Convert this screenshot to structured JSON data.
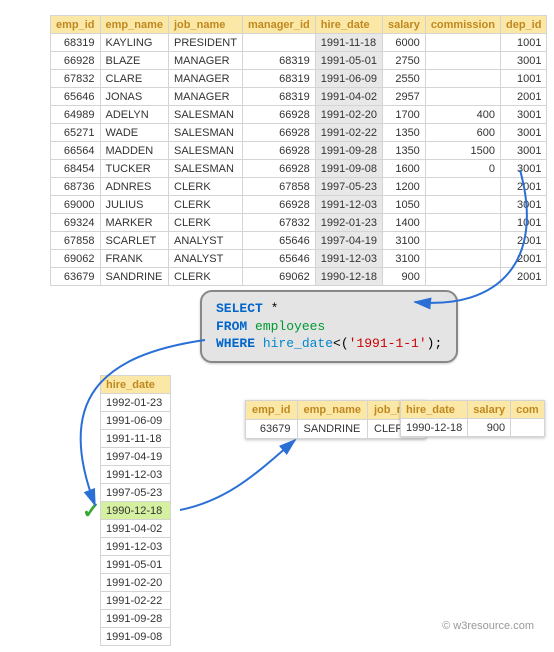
{
  "main_table": {
    "columns": [
      "emp_id",
      "emp_name",
      "job_name",
      "manager_id",
      "hire_date",
      "salary",
      "commission",
      "dep_id"
    ],
    "rows": [
      {
        "emp_id": "68319",
        "emp_name": "KAYLING",
        "job_name": "PRESIDENT",
        "manager_id": "",
        "hire_date": "1991-11-18",
        "salary": "6000",
        "commission": "",
        "dep_id": "1001"
      },
      {
        "emp_id": "66928",
        "emp_name": "BLAZE",
        "job_name": "MANAGER",
        "manager_id": "68319",
        "hire_date": "1991-05-01",
        "salary": "2750",
        "commission": "",
        "dep_id": "3001"
      },
      {
        "emp_id": "67832",
        "emp_name": "CLARE",
        "job_name": "MANAGER",
        "manager_id": "68319",
        "hire_date": "1991-06-09",
        "salary": "2550",
        "commission": "",
        "dep_id": "1001"
      },
      {
        "emp_id": "65646",
        "emp_name": "JONAS",
        "job_name": "MANAGER",
        "manager_id": "68319",
        "hire_date": "1991-04-02",
        "salary": "2957",
        "commission": "",
        "dep_id": "2001"
      },
      {
        "emp_id": "64989",
        "emp_name": "ADELYN",
        "job_name": "SALESMAN",
        "manager_id": "66928",
        "hire_date": "1991-02-20",
        "salary": "1700",
        "commission": "400",
        "dep_id": "3001"
      },
      {
        "emp_id": "65271",
        "emp_name": "WADE",
        "job_name": "SALESMAN",
        "manager_id": "66928",
        "hire_date": "1991-02-22",
        "salary": "1350",
        "commission": "600",
        "dep_id": "3001"
      },
      {
        "emp_id": "66564",
        "emp_name": "MADDEN",
        "job_name": "SALESMAN",
        "manager_id": "66928",
        "hire_date": "1991-09-28",
        "salary": "1350",
        "commission": "1500",
        "dep_id": "3001"
      },
      {
        "emp_id": "68454",
        "emp_name": "TUCKER",
        "job_name": "SALESMAN",
        "manager_id": "66928",
        "hire_date": "1991-09-08",
        "salary": "1600",
        "commission": "0",
        "dep_id": "3001"
      },
      {
        "emp_id": "68736",
        "emp_name": "ADNRES",
        "job_name": "CLERK",
        "manager_id": "67858",
        "hire_date": "1997-05-23",
        "salary": "1200",
        "commission": "",
        "dep_id": "2001"
      },
      {
        "emp_id": "69000",
        "emp_name": "JULIUS",
        "job_name": "CLERK",
        "manager_id": "66928",
        "hire_date": "1991-12-03",
        "salary": "1050",
        "commission": "",
        "dep_id": "3001"
      },
      {
        "emp_id": "69324",
        "emp_name": "MARKER",
        "job_name": "CLERK",
        "manager_id": "67832",
        "hire_date": "1992-01-23",
        "salary": "1400",
        "commission": "",
        "dep_id": "1001"
      },
      {
        "emp_id": "67858",
        "emp_name": "SCARLET",
        "job_name": "ANALYST",
        "manager_id": "65646",
        "hire_date": "1997-04-19",
        "salary": "3100",
        "commission": "",
        "dep_id": "2001"
      },
      {
        "emp_id": "69062",
        "emp_name": "FRANK",
        "job_name": "ANALYST",
        "manager_id": "65646",
        "hire_date": "1991-12-03",
        "salary": "3100",
        "commission": "",
        "dep_id": "2001"
      },
      {
        "emp_id": "63679",
        "emp_name": "SANDRINE",
        "job_name": "CLERK",
        "manager_id": "69062",
        "hire_date": "1990-12-18",
        "salary": "900",
        "commission": "",
        "dep_id": "2001"
      }
    ]
  },
  "query": {
    "line1_kw": "SELECT",
    "line1_rest": " *",
    "line2_kw": "FROM ",
    "line2_tbl": "employees",
    "line3_kw": "WHERE ",
    "line3_col": "hire_date",
    "line3_op": "<(",
    "line3_str": "'1991-1-1'",
    "line3_end": ");"
  },
  "hire_table": {
    "header": "hire_date",
    "rows": [
      "1992-01-23",
      "1991-06-09",
      "1991-11-18",
      "1997-04-19",
      "1991-12-03",
      "1997-05-23",
      "1990-12-18",
      "1991-04-02",
      "1991-12-03",
      "1991-05-01",
      "1991-02-20",
      "1991-02-22",
      "1991-09-28",
      "1991-09-08"
    ],
    "highlight_index": 6
  },
  "result1": {
    "columns": [
      "emp_id",
      "emp_name",
      "job_na..."
    ],
    "row": {
      "emp_id": "63679",
      "emp_name": "SANDRINE",
      "job": "CLERK"
    }
  },
  "result2": {
    "columns": [
      "hire_date",
      "salary",
      "com"
    ],
    "row": {
      "hire_date": "1990-12-18",
      "salary": "900",
      "com": ""
    }
  },
  "attribution": "© w3resource.com",
  "colors": {
    "header_bg": "#fbe8a6",
    "header_fg": "#c08820",
    "border": "#d4d4d4",
    "date_bg": "#e8e8e8",
    "highlight_bg": "#d4f0a0",
    "arrow_blue": "#2a6fd6",
    "query_bg": "#e4e4e4",
    "check_green": "#3aaa35"
  }
}
